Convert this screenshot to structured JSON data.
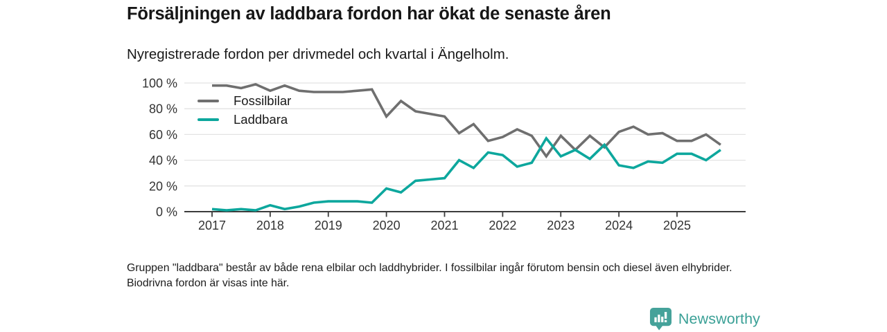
{
  "header": {
    "title": "Försäljningen av laddbara fordon har ökat de senaste åren",
    "subtitle": "Nyregistrerade fordon per drivmedel och kvartal i Ängelholm."
  },
  "chart_data": {
    "type": "line",
    "x": [
      "2017 Q1",
      "2017 Q2",
      "2017 Q3",
      "2017 Q4",
      "2018 Q1",
      "2018 Q2",
      "2018 Q3",
      "2018 Q4",
      "2019 Q1",
      "2019 Q2",
      "2019 Q3",
      "2019 Q4",
      "2020 Q1",
      "2020 Q2",
      "2020 Q3",
      "2020 Q4",
      "2021 Q1",
      "2021 Q2",
      "2021 Q3",
      "2021 Q4",
      "2022 Q1",
      "2022 Q2",
      "2022 Q3",
      "2022 Q4",
      "2023 Q1",
      "2023 Q2",
      "2023 Q3",
      "2023 Q4",
      "2024 Q1",
      "2024 Q2",
      "2024 Q3",
      "2024 Q4",
      "2025 Q1",
      "2025 Q2",
      "2025 Q3",
      "2025 Q4"
    ],
    "series": [
      {
        "name": "Fossilbilar",
        "color": "#6f6f6f",
        "values": [
          98,
          98,
          96,
          99,
          94,
          98,
          94,
          93,
          93,
          93,
          94,
          95,
          74,
          86,
          78,
          76,
          74,
          61,
          68,
          55,
          58,
          64,
          59,
          43,
          59,
          48,
          59,
          50,
          62,
          66,
          60,
          61,
          55,
          55,
          60,
          52
        ]
      },
      {
        "name": "Laddbara",
        "color": "#0da79d",
        "values": [
          2,
          1,
          2,
          1,
          5,
          2,
          4,
          7,
          8,
          8,
          8,
          7,
          18,
          15,
          24,
          25,
          26,
          40,
          34,
          46,
          44,
          35,
          38,
          57,
          43,
          48,
          41,
          52,
          36,
          34,
          39,
          38,
          45,
          45,
          40,
          48
        ]
      }
    ],
    "unit": "%",
    "ylim": [
      0,
      100
    ],
    "y_ticks": {
      "values": [
        0,
        20,
        40,
        60,
        80,
        100
      ],
      "labels": [
        "0 %",
        "20 %",
        "40 %",
        "60 %",
        "80 %",
        "100 %"
      ]
    },
    "x_tick_labels": [
      "2017",
      "2018",
      "2019",
      "2020",
      "2021",
      "2022",
      "2023",
      "2024",
      "2025"
    ],
    "grid": true,
    "legend_position": "top-left"
  },
  "footnote": "Gruppen \"laddbara\" består av både rena elbilar och laddhybrider. I fossilbilar ingår förutom bensin och diesel även elhybrider. Biodrivna fordon är visas inte här.",
  "branding": {
    "logo_text": "Newsworthy",
    "logo_text_color": "#3aa096",
    "logo_icon_color": "#45a29a"
  }
}
